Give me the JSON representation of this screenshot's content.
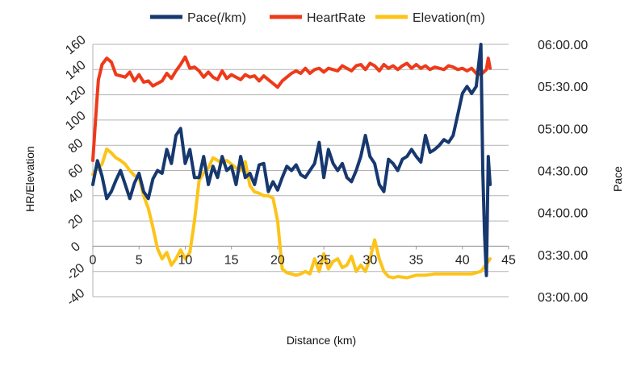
{
  "chart_data": {
    "type": "line",
    "title": "",
    "xlabel": "Distance (km)",
    "ylabel": "HR/Elevation",
    "y2label": "Pace",
    "xlim": [
      0,
      45
    ],
    "ylim": [
      -40,
      160
    ],
    "y2lim": [
      "03:00.00",
      "06:00.00"
    ],
    "x_ticks": [
      0,
      5,
      10,
      15,
      20,
      25,
      30,
      35,
      40,
      45
    ],
    "x_tick_labels": [
      "0",
      "5",
      "10",
      "15",
      "20",
      "25",
      "30",
      "35",
      "40",
      "45"
    ],
    "y_ticks": [
      -40,
      -20,
      0,
      20,
      40,
      60,
      80,
      100,
      120,
      140,
      160
    ],
    "y_tick_labels": [
      "-40",
      "-20",
      "0",
      "20",
      "40",
      "60",
      "80",
      "100",
      "120",
      "140",
      "160"
    ],
    "y2_ticks": [
      "03:00.00",
      "03:30.00",
      "04:00.00",
      "04:30.00",
      "05:00.00",
      "05:30.00",
      "06:00.00"
    ],
    "grid": true,
    "legend_position": "top",
    "series": [
      {
        "name": "Pace(/km)",
        "axis": "right",
        "color": "#17386f",
        "x": [
          0,
          0.5,
          1,
          1.5,
          2,
          2.5,
          3,
          3.5,
          4,
          4.5,
          5,
          5.5,
          6,
          6.5,
          7,
          7.5,
          8,
          8.5,
          9,
          9.5,
          10,
          10.5,
          11,
          11.5,
          12,
          12.5,
          13,
          13.5,
          14,
          14.5,
          15,
          15.5,
          16,
          16.5,
          17,
          17.5,
          18,
          18.5,
          19,
          19.5,
          20,
          20.5,
          21,
          21.5,
          22,
          22.5,
          23,
          23.5,
          24,
          24.5,
          25,
          25.5,
          26,
          26.5,
          27,
          27.5,
          28,
          28.5,
          29,
          29.5,
          30,
          30.5,
          31,
          31.5,
          32,
          32.5,
          33,
          33.5,
          34,
          34.5,
          35,
          35.5,
          36,
          36.5,
          37,
          37.5,
          38,
          38.5,
          39,
          39.5,
          40,
          40.5,
          41,
          41.5,
          42,
          42.2,
          42.4,
          42.6,
          42.8,
          43
        ],
        "y": [
          "04:20.00",
          "04:37.00",
          "04:26.00",
          "04:10.00",
          "04:15.00",
          "04:23.00",
          "04:30.00",
          "04:20.00",
          "04:10.00",
          "04:21.00",
          "04:28.00",
          "04:15.00",
          "04:10.00",
          "04:24.00",
          "04:30.00",
          "04:28.00",
          "04:45.00",
          "04:35.00",
          "04:55.00",
          "05:00.00",
          "04:35.00",
          "04:45.00",
          "04:25.00",
          "04:25.00",
          "04:40.00",
          "04:20.00",
          "04:33.00",
          "04:25.00",
          "04:40.00",
          "04:30.00",
          "04:33.00",
          "04:20.00",
          "04:40.00",
          "04:25.00",
          "04:28.00",
          "04:20.00",
          "04:34.00",
          "04:35.00",
          "04:15.00",
          "04:22.00",
          "04:16.00",
          "04:25.00",
          "04:33.00",
          "04:30.00",
          "04:34.00",
          "04:27.00",
          "04:25.00",
          "04:30.00",
          "04:35.00",
          "04:50.00",
          "04:25.00",
          "04:45.00",
          "04:35.00",
          "04:30.00",
          "04:35.00",
          "04:25.00",
          "04:22.00",
          "04:30.00",
          "04:40.00",
          "04:55.00",
          "04:40.00",
          "04:35.00",
          "04:20.00",
          "04:15.00",
          "04:38.00",
          "04:35.00",
          "04:30.00",
          "04:38.00",
          "04:40.00",
          "04:45.00",
          "04:40.00",
          "04:36.00",
          "04:55.00",
          "04:43.00",
          "04:45.00",
          "04:48.00",
          "04:52.00",
          "04:50.00",
          "04:55.00",
          "05:10.00",
          "05:25.00",
          "05:30.00",
          "05:25.00",
          "05:30.00",
          "06:00.00",
          "04:30.00",
          "03:45.00",
          "03:15.00",
          "04:40.00",
          "04:20.00"
        ]
      },
      {
        "name": "HeartRate",
        "axis": "left",
        "color": "#ee3a1a",
        "x": [
          0,
          0.2,
          0.4,
          0.6,
          0.8,
          1,
          1.5,
          2,
          2.5,
          3,
          3.5,
          4,
          4.5,
          5,
          5.5,
          6,
          6.5,
          7,
          7.5,
          8,
          8.5,
          9,
          9.5,
          10,
          10.5,
          11,
          11.5,
          12,
          12.5,
          13,
          13.5,
          14,
          14.5,
          15,
          15.5,
          16,
          16.5,
          17,
          17.5,
          18,
          18.5,
          19,
          19.5,
          20,
          20.5,
          21,
          21.5,
          22,
          22.5,
          23,
          23.5,
          24,
          24.5,
          25,
          25.5,
          26,
          26.5,
          27,
          27.5,
          28,
          28.5,
          29,
          29.5,
          30,
          30.5,
          31,
          31.5,
          32,
          32.5,
          33,
          33.5,
          34,
          34.5,
          35,
          35.5,
          36,
          36.5,
          37,
          37.5,
          38,
          38.5,
          39,
          39.5,
          40,
          40.5,
          41,
          41.5,
          42,
          42.3,
          42.6,
          42.8,
          43
        ],
        "y": [
          68,
          90,
          112,
          132,
          138,
          144,
          149,
          146,
          136,
          135,
          134,
          138,
          131,
          136,
          130,
          131,
          127,
          129,
          131,
          137,
          133,
          139,
          144,
          150,
          141,
          142,
          139,
          134,
          138,
          134,
          132,
          139,
          133,
          136,
          134,
          132,
          136,
          134,
          135,
          131,
          135,
          132,
          129,
          126,
          131,
          134,
          137,
          139,
          137,
          141,
          137,
          140,
          141,
          138,
          141,
          140,
          139,
          143,
          141,
          139,
          143,
          144,
          140,
          145,
          143,
          139,
          144,
          141,
          143,
          140,
          143,
          145,
          141,
          144,
          141,
          143,
          140,
          142,
          141,
          140,
          143,
          142,
          140,
          141,
          139,
          141,
          137,
          136,
          138,
          140,
          149,
          141
        ]
      },
      {
        "name": "Elevation(m)",
        "axis": "left",
        "color": "#fcc419",
        "x": [
          0,
          0.5,
          1,
          1.5,
          2,
          2.5,
          3,
          3.5,
          4,
          4.5,
          5,
          5.5,
          6,
          6.5,
          7,
          7.5,
          8,
          8.5,
          9,
          9.5,
          10,
          10.5,
          11,
          11.5,
          12,
          12.5,
          13,
          13.5,
          14,
          14.5,
          15,
          15.5,
          16,
          16.5,
          17,
          17.5,
          18,
          18.5,
          19,
          19.5,
          20,
          20.5,
          21,
          21.5,
          22,
          22.5,
          23,
          23.5,
          24,
          24.5,
          25,
          25.5,
          26,
          26.5,
          27,
          27.5,
          28,
          28.5,
          29,
          29.5,
          30,
          30.5,
          31,
          31.5,
          32,
          32.5,
          33,
          34,
          35,
          36,
          37,
          38,
          39,
          40,
          41,
          42,
          42.5,
          43
        ],
        "y": [
          57,
          62,
          65,
          77,
          74,
          70,
          68,
          65,
          60,
          56,
          55,
          40,
          30,
          15,
          -2,
          -10,
          -5,
          -15,
          -10,
          -3,
          -10,
          -5,
          20,
          52,
          58,
          62,
          70,
          68,
          66,
          68,
          65,
          62,
          60,
          67,
          48,
          43,
          42,
          40,
          40,
          38,
          20,
          -18,
          -21,
          -22,
          -23,
          -22,
          -20,
          -22,
          -10,
          -20,
          -6,
          -18,
          -12,
          -10,
          -17,
          -15,
          -8,
          -20,
          -15,
          -20,
          -10,
          5,
          -10,
          -20,
          -24,
          -25,
          -24,
          -25,
          -23,
          -23,
          -22,
          -22,
          -22,
          -22,
          -22,
          -20,
          -15,
          -10
        ]
      }
    ]
  }
}
